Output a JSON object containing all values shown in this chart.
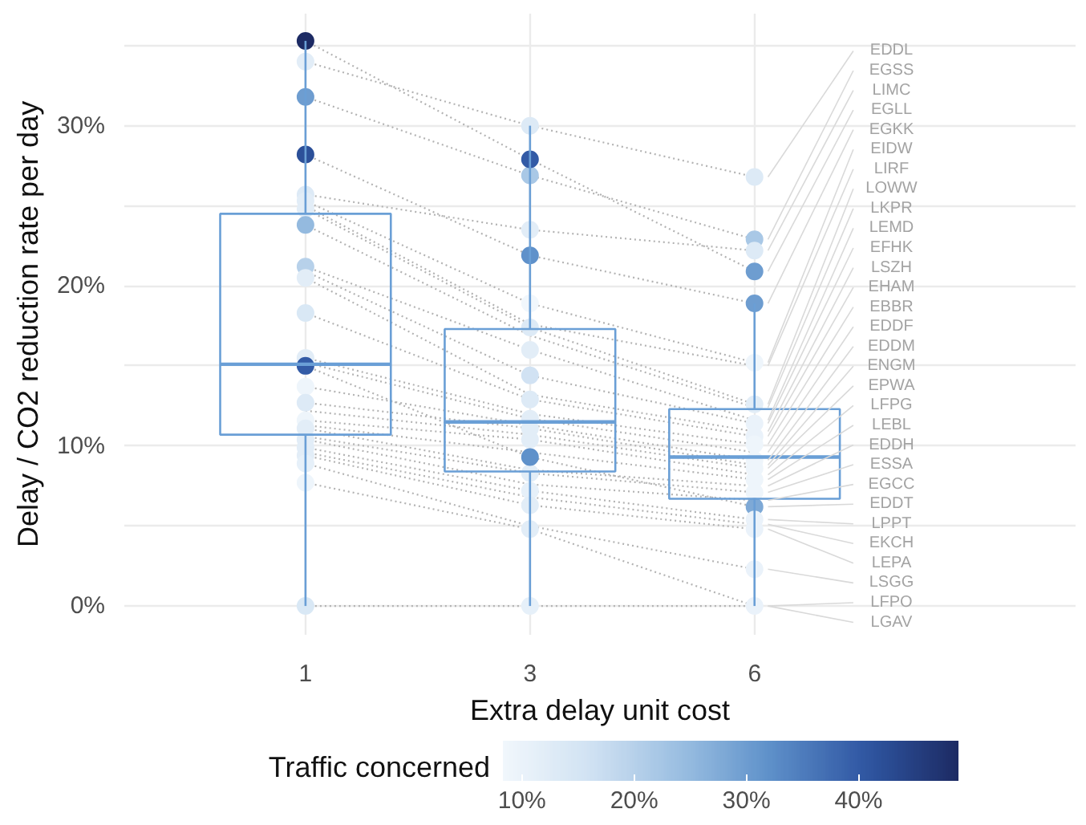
{
  "chart_data": {
    "type": "box",
    "xlabel": "Extra delay unit cost",
    "ylabel": "Delay / CO2 reduction rate per day",
    "clabel": "Traffic concerned",
    "categories": [
      "1",
      "3",
      "6"
    ],
    "ylim": [
      -1.8,
      37
    ],
    "yticks": [
      {
        "value": 0,
        "label": "0%"
      },
      {
        "value": 5,
        "label": null
      },
      {
        "value": 10,
        "label": "10%"
      },
      {
        "value": 15,
        "label": null
      },
      {
        "value": 20,
        "label": "20%"
      },
      {
        "value": 25,
        "label": null
      },
      {
        "value": 30,
        "label": "30%"
      },
      {
        "value": 35,
        "label": null
      }
    ],
    "grid": true,
    "legend": "right",
    "line_style": "dotted",
    "clim": [
      8.3,
      48.9
    ],
    "cticks": [
      {
        "value": 10,
        "label": "10%"
      },
      {
        "value": 20,
        "label": "20%"
      },
      {
        "value": 30,
        "label": "30%"
      },
      {
        "value": 40,
        "label": "40%"
      }
    ],
    "series": [
      {
        "name": "EDDL",
        "type": "line",
        "color": "#b3b3b3",
        "values": [
          34.0,
          30.0,
          26.8
        ]
      },
      {
        "name": "EGSS",
        "type": "line",
        "color": "#b3b3b3",
        "values": [
          31.8,
          26.9,
          22.9
        ]
      },
      {
        "name": "LIMC",
        "type": "line",
        "color": "#b3b3b3",
        "values": [
          25.7,
          23.5,
          22.2
        ]
      },
      {
        "name": "EGLL",
        "type": "line",
        "color": "#b3b3b3",
        "values": [
          35.3,
          27.9,
          20.9
        ]
      },
      {
        "name": "EGKK",
        "type": "line",
        "color": "#b3b3b3",
        "values": [
          28.2,
          21.9,
          18.9
        ]
      },
      {
        "name": "EIDW",
        "type": "line",
        "color": "#b3b3b3",
        "values": [
          25.3,
          18.9,
          15.2
        ]
      },
      {
        "name": "LIRF",
        "type": "line",
        "color": "#b3b3b3",
        "values": [
          25.0,
          17.6,
          15.0
        ]
      },
      {
        "name": "LOWW",
        "type": "line",
        "color": "#b3b3b3",
        "values": [
          24.8,
          17.4,
          12.6
        ]
      },
      {
        "name": "LKPR",
        "type": "line",
        "color": "#b3b3b3",
        "values": [
          23.8,
          16.9,
          12.4
        ]
      },
      {
        "name": "LEMD",
        "type": "line",
        "color": "#b3b3b3",
        "values": [
          21.2,
          16.0,
          11.6
        ]
      },
      {
        "name": "EFHK",
        "type": "line",
        "color": "#b3b3b3",
        "values": [
          20.9,
          14.4,
          11.4
        ]
      },
      {
        "name": "LSZH",
        "type": "line",
        "color": "#b3b3b3",
        "values": [
          20.5,
          13.2,
          10.9
        ]
      },
      {
        "name": "EHAM",
        "type": "line",
        "color": "#b3b3b3",
        "values": [
          18.3,
          12.9,
          10.6
        ]
      },
      {
        "name": "EBBR",
        "type": "line",
        "color": "#b3b3b3",
        "values": [
          15.5,
          12.0,
          10.1
        ]
      },
      {
        "name": "EDDF",
        "type": "line",
        "color": "#b3b3b3",
        "values": [
          15.2,
          11.7,
          9.6
        ]
      },
      {
        "name": "EDDM",
        "type": "line",
        "color": "#b3b3b3",
        "values": [
          13.7,
          11.3,
          9.1
        ]
      },
      {
        "name": "ENGM",
        "type": "line",
        "color": "#b3b3b3",
        "values": [
          12.7,
          11.1,
          8.8
        ]
      },
      {
        "name": "EPWA",
        "type": "line",
        "color": "#b3b3b3",
        "values": [
          12.2,
          10.7,
          8.6
        ]
      },
      {
        "name": "LFPG",
        "type": "line",
        "color": "#b3b3b3",
        "values": [
          11.6,
          10.4,
          8.2
        ]
      },
      {
        "name": "LEBL",
        "type": "line",
        "color": "#b3b3b3",
        "values": [
          11.3,
          9.6,
          7.9
        ]
      },
      {
        "name": "EDDH",
        "type": "line",
        "color": "#b3b3b3",
        "values": [
          11.1,
          8.5,
          7.5
        ]
      },
      {
        "name": "ESSA",
        "type": "line",
        "color": "#b3b3b3",
        "values": [
          10.6,
          8.3,
          7.1
        ]
      },
      {
        "name": "EGCC",
        "type": "line",
        "color": "#b3b3b3",
        "values": [
          10.4,
          7.6,
          6.6
        ]
      },
      {
        "name": "EDDT",
        "type": "line",
        "color": "#b3b3b3",
        "values": [
          15.0,
          9.3,
          6.2
        ]
      },
      {
        "name": "LPPT",
        "type": "line",
        "color": "#b3b3b3",
        "values": [
          9.9,
          7.2,
          5.4
        ]
      },
      {
        "name": "EKCH",
        "type": "line",
        "color": "#b3b3b3",
        "values": [
          9.6,
          6.8,
          5.1
        ]
      },
      {
        "name": "LEPA",
        "type": "line",
        "color": "#b3b3b3",
        "values": [
          9.4,
          6.3,
          4.8
        ]
      },
      {
        "name": "LSGG",
        "type": "line",
        "color": "#b3b3b3",
        "values": [
          8.9,
          5.0,
          2.3
        ]
      },
      {
        "name": "LFPO",
        "type": "line",
        "color": "#b3b3b3",
        "values": [
          7.7,
          4.8,
          0
        ]
      },
      {
        "name": "LGAV",
        "type": "line",
        "color": "#b3b3b3",
        "values": [
          0,
          0,
          0
        ]
      },
      {
        "type": "scatter",
        "marker": "circle",
        "x": [
          "1",
          "1",
          "1",
          "1",
          "1",
          "1",
          "1",
          "1",
          "1",
          "1",
          "1",
          "1",
          "1",
          "1",
          "1",
          "1",
          "1",
          "1",
          "1",
          "1",
          "1",
          "1",
          "1",
          "1",
          "1",
          "1",
          "1",
          "1",
          "1",
          "1",
          "3",
          "3",
          "3",
          "3",
          "3",
          "3",
          "3",
          "3",
          "3",
          "3",
          "3",
          "3",
          "3",
          "3",
          "3",
          "3",
          "3",
          "3",
          "3",
          "3",
          "3",
          "3",
          "3",
          "3",
          "3",
          "3",
          "3",
          "3",
          "3",
          "3",
          "6",
          "6",
          "6",
          "6",
          "6",
          "6",
          "6",
          "6",
          "6",
          "6",
          "6",
          "6",
          "6",
          "6",
          "6",
          "6",
          "6",
          "6",
          "6",
          "6",
          "6",
          "6",
          "6",
          "6",
          "6",
          "6",
          "6",
          "6",
          "6",
          "6"
        ],
        "values": [
          34.0,
          31.8,
          25.7,
          35.3,
          28.2,
          25.3,
          null,
          24.8,
          23.8,
          21.2,
          null,
          20.5,
          18.3,
          15.5,
          null,
          13.7,
          12.7,
          null,
          11.6,
          null,
          11.1,
          null,
          10.4,
          15.0,
          9.9,
          null,
          9.4,
          8.9,
          7.7,
          0,
          30.0,
          26.9,
          23.5,
          27.9,
          21.9,
          18.9,
          null,
          17.4,
          null,
          16.0,
          14.4,
          null,
          12.9,
          null,
          11.7,
          null,
          11.1,
          null,
          10.4,
          null,
          null,
          8.3,
          null,
          9.3,
          7.2,
          null,
          6.3,
          null,
          4.8,
          0,
          26.8,
          22.9,
          22.2,
          20.9,
          18.9,
          15.2,
          null,
          12.6,
          null,
          null,
          11.4,
          null,
          10.6,
          10.1,
          null,
          9.1,
          null,
          8.6,
          null,
          7.9,
          null,
          7.1,
          null,
          6.2,
          5.4,
          null,
          4.8,
          2.3,
          null,
          0
        ],
        "cvalues": [
          12,
          30,
          13,
          48.9,
          42,
          12,
          null,
          12,
          25,
          20,
          null,
          12,
          14,
          12,
          null,
          9,
          13,
          null,
          9,
          null,
          12,
          null,
          12,
          40,
          12,
          null,
          12,
          11,
          9,
          14,
          13,
          22,
          12,
          40,
          32,
          8.3,
          null,
          13,
          null,
          12,
          16,
          null,
          13,
          null,
          12,
          null,
          12,
          null,
          12,
          null,
          null,
          12,
          null,
          32,
          11,
          null,
          12,
          null,
          12,
          11,
          13,
          22,
          13,
          30,
          30,
          9,
          null,
          12,
          null,
          null,
          10,
          null,
          10,
          9,
          null,
          9,
          null,
          9,
          null,
          9,
          null,
          9,
          null,
          28,
          10,
          null,
          10,
          10,
          null,
          10
        ],
        "colors": [
          "#e2edf7",
          "#6e9dd0",
          "#ddeaf6",
          "#1d2b64",
          "#2c5099",
          "#e2edf7",
          null,
          "#e2edf7",
          "#94badf",
          "#b7d1ea",
          null,
          "#e2edf7",
          "#d9e8f5",
          "#e2edf7",
          null,
          "#eef5fb",
          "#ddeaf6",
          null,
          "#eef5fb",
          null,
          "#e2edf7",
          null,
          "#e2edf7",
          "#335ba6",
          "#e2edf7",
          null,
          "#e2edf7",
          "#e6f0f9",
          "#eef5fb",
          "#d9e8f5",
          "#ddeaf6",
          "#a9c8e6",
          "#e2edf7",
          "#335ba6",
          "#5f91ca",
          "#f1f7fc",
          null,
          "#ddeaf6",
          null,
          "#e2edf7",
          "#d1e2f3",
          null,
          "#ddeaf6",
          null,
          "#e2edf7",
          null,
          "#e2edf7",
          null,
          "#e2edf7",
          null,
          null,
          "#e2edf7",
          null,
          "#5f91ca",
          "#e6f0f9",
          null,
          "#e2edf7",
          null,
          "#e2edf7",
          "#e6f0f9",
          "#ddeaf6",
          "#a9c8e6",
          "#ddeaf6",
          "#6e9dd0",
          "#6e9dd0",
          "#eef5fb",
          null,
          "#e2edf7",
          null,
          null,
          "#eaf2fa",
          null,
          "#eaf2fa",
          "#eef5fb",
          null,
          "#eef5fb",
          null,
          "#eef5fb",
          null,
          "#eef5fb",
          null,
          "#eef5fb",
          null,
          "#7ea9d6",
          "#eaf2fa",
          null,
          "#eaf2fa",
          "#eaf2fa",
          null,
          "#eaf2fa"
        ]
      },
      {
        "color": "#6a9fd6",
        "boxes": [
          {
            "low": 0,
            "q1": 10.7,
            "median": 15.1,
            "q3": 24.5,
            "high": 35.3
          },
          {
            "low": 0,
            "q1": 8.4,
            "median": 11.5,
            "q3": 17.3,
            "high": 30.0
          },
          {
            "low": 0,
            "q1": 6.7,
            "median": 9.3,
            "q3": 12.3,
            "high": 18.9
          }
        ]
      }
    ]
  }
}
